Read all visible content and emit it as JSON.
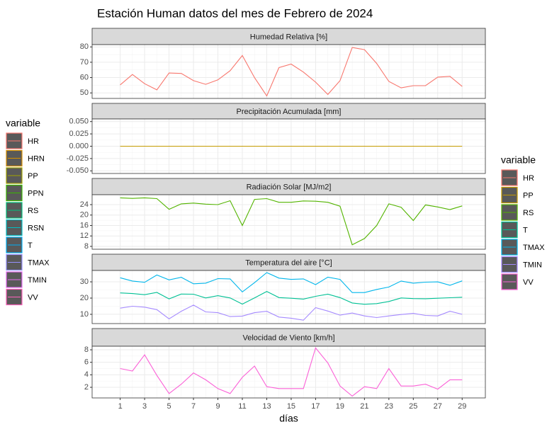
{
  "title": "Estación Human datos del mes de Febrero de 2024",
  "legends": [
    {
      "title": "variable",
      "entries": [
        {
          "name": "HR",
          "color": "#F8766D"
        },
        {
          "name": "HRN",
          "color": "#D89000"
        },
        {
          "name": "PP",
          "color": "#A3A500"
        },
        {
          "name": "PPN",
          "color": "#39B600"
        },
        {
          "name": "RS",
          "color": "#00BF7D"
        },
        {
          "name": "RSN",
          "color": "#00BFC4"
        },
        {
          "name": "T",
          "color": "#00B0F6"
        },
        {
          "name": "TMAX",
          "color": "#9590FF"
        },
        {
          "name": "TMIN",
          "color": "#E76BF3"
        },
        {
          "name": "VV",
          "color": "#FF62BC"
        }
      ]
    },
    {
      "title": "variable",
      "entries": [
        {
          "name": "HR",
          "color": "#F8766D"
        },
        {
          "name": "PP",
          "color": "#C49A00"
        },
        {
          "name": "RS",
          "color": "#53B400"
        },
        {
          "name": "T",
          "color": "#00C094"
        },
        {
          "name": "TMAX",
          "color": "#00B6EB"
        },
        {
          "name": "TMIN",
          "color": "#A58AFF"
        },
        {
          "name": "VV",
          "color": "#FB61D7"
        }
      ]
    }
  ],
  "chart_data": [
    {
      "type": "line",
      "title": "Humedad Relativa [%]",
      "x": [
        1,
        2,
        3,
        4,
        5,
        6,
        7,
        8,
        9,
        10,
        11,
        12,
        13,
        14,
        15,
        16,
        17,
        18,
        19,
        20,
        21,
        22,
        23,
        24,
        25,
        26,
        27,
        28,
        29
      ],
      "series": [
        {
          "color": "#F8766D",
          "values": [
            55.2,
            62,
            56,
            52,
            63,
            62.7,
            58,
            55.6,
            58.5,
            64.5,
            74.4,
            60,
            48,
            66.5,
            68.8,
            63.6,
            57,
            49,
            58,
            79.6,
            78.2,
            69.2,
            57.5,
            53.3,
            54.7,
            54.7,
            60.3,
            60.8,
            54.2
          ]
        }
      ],
      "xlim": [
        -1.3,
        30.9
      ],
      "xticks": [
        1,
        3,
        5,
        7,
        9,
        11,
        13,
        15,
        17,
        19,
        21,
        23,
        25,
        27,
        29
      ],
      "ylim": [
        46.4,
        81.5
      ],
      "yticks": [
        50,
        60,
        70,
        80
      ],
      "grid": true
    },
    {
      "type": "line",
      "title": "Precipitación Acumulada [mm]",
      "x": [
        1,
        2,
        3,
        4,
        5,
        6,
        7,
        8,
        9,
        10,
        11,
        12,
        13,
        14,
        15,
        16,
        17,
        18,
        19,
        20,
        21,
        22,
        23,
        24,
        25,
        26,
        27,
        28,
        29
      ],
      "series": [
        {
          "color": "#C49A00",
          "values": [
            0,
            0,
            0,
            0,
            0,
            0,
            0,
            0,
            0,
            0,
            0,
            0,
            0,
            0,
            0,
            0,
            0,
            0,
            0,
            0,
            0,
            0,
            0,
            0,
            0,
            0,
            0,
            0,
            0
          ]
        }
      ],
      "xlim": [
        -1.3,
        30.9
      ],
      "xticks": [
        1,
        3,
        5,
        7,
        9,
        11,
        13,
        15,
        17,
        19,
        21,
        23,
        25,
        27,
        29
      ],
      "ylim": [
        -0.0553,
        0.0553
      ],
      "yticks": [
        {
          "value": 0.05,
          "label": "0.050"
        },
        {
          "value": 0.025,
          "label": "0.025"
        },
        {
          "value": 0,
          "label": "0.000"
        },
        {
          "value": -0.025,
          "label": "-0.025"
        },
        {
          "value": -0.05,
          "label": "-0.050"
        }
      ],
      "grid": true
    },
    {
      "type": "line",
      "title": "Radiación Solar [MJ/m2]",
      "x": [
        1,
        2,
        3,
        4,
        5,
        6,
        7,
        8,
        9,
        10,
        11,
        12,
        13,
        14,
        15,
        16,
        17,
        18,
        19,
        20,
        21,
        22,
        23,
        24,
        25,
        26,
        27,
        28,
        29
      ],
      "series": [
        {
          "color": "#53B400",
          "values": [
            26.6,
            26.4,
            26.6,
            26.3,
            22.2,
            24.3,
            24.6,
            24.2,
            24.0,
            25.5,
            16.0,
            26.0,
            26.3,
            24.9,
            24.9,
            25.4,
            25.3,
            24.9,
            23.4,
            8.6,
            11.0,
            16.0,
            24.3,
            23.0,
            17.9,
            23.9,
            23.1,
            22.1,
            23.5
          ]
        }
      ],
      "xlim": [
        -1.3,
        30.9
      ],
      "xticks": [
        1,
        3,
        5,
        7,
        9,
        11,
        13,
        15,
        17,
        19,
        21,
        23,
        25,
        27,
        29
      ],
      "ylim": [
        6.9,
        27.8
      ],
      "yticks": [
        8,
        12,
        16,
        20,
        24
      ],
      "grid": true
    },
    {
      "type": "line",
      "title": "Temperatura del aire [°C]",
      "x": [
        1,
        2,
        3,
        4,
        5,
        6,
        7,
        8,
        9,
        10,
        11,
        12,
        13,
        14,
        15,
        16,
        17,
        18,
        19,
        20,
        21,
        22,
        23,
        24,
        25,
        26,
        27,
        28,
        29
      ],
      "series": [
        {
          "color": "#00C094",
          "values": [
            23.2,
            22.8,
            22.1,
            23.5,
            19.5,
            22.5,
            22.4,
            20.1,
            21.5,
            20.1,
            16.3,
            20.1,
            24.1,
            20.3,
            19.9,
            19.4,
            21.1,
            22.4,
            20.3,
            17,
            16.2,
            16.6,
            17.9,
            20.1,
            19.7,
            19.6,
            19.9,
            20.2,
            20.5
          ]
        },
        {
          "color": "#00B6EB",
          "values": [
            32.5,
            30.5,
            29.7,
            34.2,
            31.2,
            32.8,
            28.8,
            29.2,
            32,
            31.8,
            23.8,
            29.5,
            35.7,
            32.3,
            31.5,
            31.8,
            28.3,
            32.9,
            31.5,
            23.4,
            23.4,
            25.3,
            26.8,
            30.5,
            29.2,
            29.8,
            30,
            27.9,
            30.6
          ]
        },
        {
          "color": "#A58AFF",
          "values": [
            13.8,
            15,
            14.4,
            12.9,
            7.2,
            11.9,
            15.7,
            11.5,
            11,
            8.6,
            8.9,
            11,
            11.9,
            8.3,
            7.6,
            6.4,
            14.1,
            12,
            9.5,
            10.8,
            9,
            8,
            9,
            9.9,
            10.6,
            9.3,
            9,
            11.9,
            10
          ]
        }
      ],
      "xlim": [
        -1.3,
        30.9
      ],
      "xticks": [
        1,
        3,
        5,
        7,
        9,
        11,
        13,
        15,
        17,
        19,
        21,
        23,
        25,
        27,
        29
      ],
      "ylim": [
        4.3,
        37
      ],
      "yticks": [
        10,
        20,
        30
      ],
      "grid": true
    },
    {
      "type": "line",
      "title": "Velocidad de Viento [km/h]",
      "xlabel": "días",
      "x": [
        1,
        2,
        3,
        4,
        5,
        6,
        7,
        8,
        9,
        10,
        11,
        12,
        13,
        14,
        15,
        16,
        17,
        18,
        19,
        20,
        21,
        22,
        23,
        24,
        25,
        26,
        27,
        28,
        29
      ],
      "series": [
        {
          "color": "#FB61D7",
          "values": [
            5,
            4.6,
            7.2,
            3.9,
            1.0,
            2.5,
            4.3,
            3.2,
            1.8,
            1.0,
            3.6,
            5.4,
            2.1,
            1.8,
            1.8,
            1.8,
            8.3,
            5.9,
            2.2,
            0.6,
            2.1,
            1.8,
            5,
            2.2,
            2.2,
            2.5,
            1.7,
            3.2,
            3.2
          ]
        }
      ],
      "xlim": [
        -1.3,
        30.9
      ],
      "xticks": [
        1,
        3,
        5,
        7,
        9,
        11,
        13,
        15,
        17,
        19,
        21,
        23,
        25,
        27,
        29
      ],
      "ylim": [
        0.3,
        8.57
      ],
      "yticks": [
        2,
        4,
        6,
        8
      ],
      "grid": true
    }
  ]
}
